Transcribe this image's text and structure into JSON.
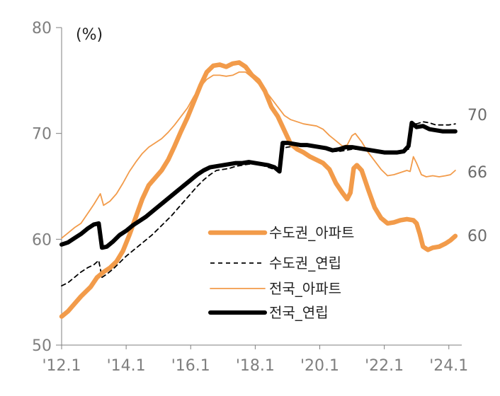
{
  "chart_data": {
    "type": "line",
    "unit_label": "(%)",
    "ylim": [
      50,
      80
    ],
    "yticks": [
      50,
      60,
      70,
      80
    ],
    "x_range": [
      2012.0,
      2024.4
    ],
    "x_tick_labels": [
      {
        "label": "'12.1",
        "x": 2012.0
      },
      {
        "label": "'14.1",
        "x": 2014.0
      },
      {
        "label": "'16.1",
        "x": 2016.0
      },
      {
        "label": "'18.1",
        "x": 2018.0
      },
      {
        "label": "'20.1",
        "x": 2020.0
      },
      {
        "label": "'22.1",
        "x": 2022.0
      },
      {
        "label": "'24.1",
        "x": 2024.0
      }
    ],
    "grid": false,
    "legend_position": "bottom-center",
    "series": [
      {
        "name": "수도권_아파트",
        "color": "#f29b4a",
        "style": "thick",
        "end_label": "60",
        "points": [
          [
            2012.0,
            52.7
          ],
          [
            2012.2,
            53.2
          ],
          [
            2012.4,
            53.9
          ],
          [
            2012.6,
            54.6
          ],
          [
            2012.9,
            55.5
          ],
          [
            2013.1,
            56.4
          ],
          [
            2013.3,
            56.9
          ],
          [
            2013.5,
            57.3
          ],
          [
            2013.7,
            57.9
          ],
          [
            2013.9,
            58.9
          ],
          [
            2014.1,
            60.4
          ],
          [
            2014.3,
            62.1
          ],
          [
            2014.5,
            63.8
          ],
          [
            2014.7,
            65.1
          ],
          [
            2014.9,
            65.8
          ],
          [
            2015.1,
            66.5
          ],
          [
            2015.3,
            67.5
          ],
          [
            2015.5,
            68.8
          ],
          [
            2015.7,
            70.2
          ],
          [
            2015.9,
            71.5
          ],
          [
            2016.1,
            73.0
          ],
          [
            2016.3,
            74.5
          ],
          [
            2016.5,
            75.8
          ],
          [
            2016.7,
            76.4
          ],
          [
            2016.9,
            76.5
          ],
          [
            2017.1,
            76.3
          ],
          [
            2017.3,
            76.6
          ],
          [
            2017.5,
            76.7
          ],
          [
            2017.7,
            76.3
          ],
          [
            2017.9,
            75.5
          ],
          [
            2018.1,
            75.0
          ],
          [
            2018.3,
            74.0
          ],
          [
            2018.5,
            72.5
          ],
          [
            2018.7,
            71.6
          ],
          [
            2018.9,
            70.3
          ],
          [
            2019.1,
            69.0
          ],
          [
            2019.3,
            68.5
          ],
          [
            2019.5,
            68.2
          ],
          [
            2019.7,
            67.8
          ],
          [
            2019.9,
            67.5
          ],
          [
            2020.1,
            67.2
          ],
          [
            2020.3,
            66.6
          ],
          [
            2020.5,
            65.3
          ],
          [
            2020.7,
            64.4
          ],
          [
            2020.85,
            63.8
          ],
          [
            2020.95,
            64.4
          ],
          [
            2021.05,
            66.7
          ],
          [
            2021.15,
            67.0
          ],
          [
            2021.3,
            66.5
          ],
          [
            2021.5,
            64.7
          ],
          [
            2021.7,
            63.0
          ],
          [
            2021.9,
            62.0
          ],
          [
            2022.1,
            61.5
          ],
          [
            2022.3,
            61.6
          ],
          [
            2022.5,
            61.8
          ],
          [
            2022.7,
            61.9
          ],
          [
            2022.9,
            61.8
          ],
          [
            2023.0,
            61.5
          ],
          [
            2023.1,
            60.5
          ],
          [
            2023.2,
            59.3
          ],
          [
            2023.35,
            59.0
          ],
          [
            2023.5,
            59.2
          ],
          [
            2023.7,
            59.3
          ],
          [
            2023.9,
            59.6
          ],
          [
            2024.05,
            59.9
          ],
          [
            2024.2,
            60.3
          ]
        ]
      },
      {
        "name": "수도권_연립",
        "color": "#000000",
        "style": "dashed",
        "end_label": "",
        "points": [
          [
            2012.0,
            55.6
          ],
          [
            2012.2,
            55.9
          ],
          [
            2012.4,
            56.4
          ],
          [
            2012.6,
            56.9
          ],
          [
            2012.8,
            57.3
          ],
          [
            2013.0,
            57.6
          ],
          [
            2013.15,
            58.0
          ],
          [
            2013.25,
            56.4
          ],
          [
            2013.4,
            56.7
          ],
          [
            2013.6,
            57.2
          ],
          [
            2013.8,
            57.8
          ],
          [
            2014.0,
            58.4
          ],
          [
            2014.2,
            58.9
          ],
          [
            2014.4,
            59.4
          ],
          [
            2014.6,
            59.9
          ],
          [
            2014.8,
            60.4
          ],
          [
            2015.0,
            61.0
          ],
          [
            2015.2,
            61.6
          ],
          [
            2015.4,
            62.2
          ],
          [
            2015.6,
            62.9
          ],
          [
            2015.8,
            63.6
          ],
          [
            2016.0,
            64.3
          ],
          [
            2016.2,
            65.0
          ],
          [
            2016.4,
            65.6
          ],
          [
            2016.6,
            66.1
          ],
          [
            2016.8,
            66.5
          ],
          [
            2017.0,
            66.6
          ],
          [
            2017.2,
            66.7
          ],
          [
            2017.4,
            66.9
          ],
          [
            2017.6,
            67.0
          ],
          [
            2017.8,
            67.1
          ],
          [
            2018.0,
            67.1
          ],
          [
            2018.2,
            67.0
          ],
          [
            2018.4,
            66.8
          ],
          [
            2018.6,
            66.6
          ],
          [
            2018.75,
            66.4
          ],
          [
            2018.85,
            68.6
          ],
          [
            2019.0,
            68.7
          ],
          [
            2019.2,
            68.8
          ],
          [
            2019.4,
            68.8
          ],
          [
            2019.6,
            68.8
          ],
          [
            2019.8,
            68.7
          ],
          [
            2020.0,
            68.6
          ],
          [
            2020.2,
            68.5
          ],
          [
            2020.4,
            68.3
          ],
          [
            2020.6,
            68.3
          ],
          [
            2020.8,
            68.4
          ],
          [
            2021.0,
            68.5
          ],
          [
            2021.2,
            68.5
          ],
          [
            2021.4,
            68.4
          ],
          [
            2021.6,
            68.3
          ],
          [
            2021.8,
            68.2
          ],
          [
            2022.0,
            68.1
          ],
          [
            2022.2,
            68.1
          ],
          [
            2022.4,
            68.1
          ],
          [
            2022.6,
            68.2
          ],
          [
            2022.75,
            68.5
          ],
          [
            2022.85,
            71.0
          ],
          [
            2023.0,
            70.9
          ],
          [
            2023.2,
            71.1
          ],
          [
            2023.4,
            71.0
          ],
          [
            2023.6,
            70.8
          ],
          [
            2023.8,
            70.8
          ],
          [
            2024.0,
            70.8
          ],
          [
            2024.2,
            70.9
          ]
        ]
      },
      {
        "name": "전국_아파트",
        "color": "#f29b4a",
        "style": "thin",
        "end_label": "66",
        "points": [
          [
            2012.0,
            60.1
          ],
          [
            2012.2,
            60.6
          ],
          [
            2012.4,
            61.1
          ],
          [
            2012.6,
            61.5
          ],
          [
            2012.8,
            62.4
          ],
          [
            2013.0,
            63.3
          ],
          [
            2013.2,
            64.3
          ],
          [
            2013.3,
            63.2
          ],
          [
            2013.5,
            63.6
          ],
          [
            2013.7,
            64.3
          ],
          [
            2013.9,
            65.3
          ],
          [
            2014.1,
            66.4
          ],
          [
            2014.3,
            67.3
          ],
          [
            2014.5,
            68.1
          ],
          [
            2014.7,
            68.7
          ],
          [
            2014.9,
            69.1
          ],
          [
            2015.1,
            69.5
          ],
          [
            2015.3,
            70.1
          ],
          [
            2015.5,
            70.8
          ],
          [
            2015.7,
            71.6
          ],
          [
            2015.9,
            72.4
          ],
          [
            2016.1,
            73.5
          ],
          [
            2016.3,
            74.4
          ],
          [
            2016.5,
            75.1
          ],
          [
            2016.7,
            75.5
          ],
          [
            2016.9,
            75.5
          ],
          [
            2017.1,
            75.4
          ],
          [
            2017.3,
            75.5
          ],
          [
            2017.5,
            75.8
          ],
          [
            2017.7,
            75.8
          ],
          [
            2017.9,
            75.3
          ],
          [
            2018.1,
            74.7
          ],
          [
            2018.3,
            74.1
          ],
          [
            2018.5,
            73.3
          ],
          [
            2018.7,
            72.5
          ],
          [
            2018.9,
            71.7
          ],
          [
            2019.1,
            71.3
          ],
          [
            2019.3,
            71.1
          ],
          [
            2019.5,
            70.9
          ],
          [
            2019.7,
            70.8
          ],
          [
            2019.9,
            70.7
          ],
          [
            2020.1,
            70.4
          ],
          [
            2020.3,
            69.8
          ],
          [
            2020.5,
            69.3
          ],
          [
            2020.7,
            68.8
          ],
          [
            2020.85,
            68.9
          ],
          [
            2021.0,
            69.8
          ],
          [
            2021.1,
            70.0
          ],
          [
            2021.3,
            69.2
          ],
          [
            2021.5,
            68.2
          ],
          [
            2021.7,
            67.4
          ],
          [
            2021.9,
            66.6
          ],
          [
            2022.1,
            66.0
          ],
          [
            2022.3,
            66.1
          ],
          [
            2022.5,
            66.3
          ],
          [
            2022.7,
            66.5
          ],
          [
            2022.8,
            66.4
          ],
          [
            2022.9,
            67.8
          ],
          [
            2023.0,
            67.2
          ],
          [
            2023.15,
            66.1
          ],
          [
            2023.3,
            65.9
          ],
          [
            2023.5,
            66.0
          ],
          [
            2023.7,
            65.9
          ],
          [
            2023.9,
            66.0
          ],
          [
            2024.05,
            66.1
          ],
          [
            2024.2,
            66.5
          ]
        ]
      },
      {
        "name": "전국_연립",
        "color": "#000000",
        "style": "thick",
        "end_label": "70",
        "points": [
          [
            2012.0,
            59.5
          ],
          [
            2012.2,
            59.7
          ],
          [
            2012.4,
            60.1
          ],
          [
            2012.6,
            60.5
          ],
          [
            2012.8,
            61.0
          ],
          [
            2013.0,
            61.4
          ],
          [
            2013.15,
            61.5
          ],
          [
            2013.25,
            59.2
          ],
          [
            2013.4,
            59.3
          ],
          [
            2013.6,
            59.8
          ],
          [
            2013.8,
            60.4
          ],
          [
            2014.0,
            60.8
          ],
          [
            2014.2,
            61.3
          ],
          [
            2014.4,
            61.7
          ],
          [
            2014.6,
            62.1
          ],
          [
            2014.8,
            62.6
          ],
          [
            2015.0,
            63.1
          ],
          [
            2015.2,
            63.6
          ],
          [
            2015.4,
            64.1
          ],
          [
            2015.6,
            64.6
          ],
          [
            2015.8,
            65.1
          ],
          [
            2016.0,
            65.6
          ],
          [
            2016.2,
            66.1
          ],
          [
            2016.4,
            66.5
          ],
          [
            2016.6,
            66.8
          ],
          [
            2016.8,
            66.9
          ],
          [
            2017.0,
            67.0
          ],
          [
            2017.2,
            67.1
          ],
          [
            2017.4,
            67.2
          ],
          [
            2017.6,
            67.2
          ],
          [
            2017.8,
            67.3
          ],
          [
            2018.0,
            67.2
          ],
          [
            2018.2,
            67.1
          ],
          [
            2018.4,
            67.0
          ],
          [
            2018.6,
            66.8
          ],
          [
            2018.75,
            66.4
          ],
          [
            2018.85,
            69.1
          ],
          [
            2019.0,
            69.1
          ],
          [
            2019.2,
            69.0
          ],
          [
            2019.4,
            68.9
          ],
          [
            2019.6,
            68.9
          ],
          [
            2019.8,
            68.8
          ],
          [
            2020.0,
            68.7
          ],
          [
            2020.2,
            68.6
          ],
          [
            2020.4,
            68.4
          ],
          [
            2020.6,
            68.5
          ],
          [
            2020.8,
            68.7
          ],
          [
            2021.0,
            68.7
          ],
          [
            2021.2,
            68.6
          ],
          [
            2021.4,
            68.5
          ],
          [
            2021.6,
            68.4
          ],
          [
            2021.8,
            68.3
          ],
          [
            2022.0,
            68.2
          ],
          [
            2022.2,
            68.2
          ],
          [
            2022.4,
            68.2
          ],
          [
            2022.6,
            68.3
          ],
          [
            2022.75,
            68.8
          ],
          [
            2022.85,
            71.0
          ],
          [
            2023.0,
            70.6
          ],
          [
            2023.2,
            70.7
          ],
          [
            2023.4,
            70.4
          ],
          [
            2023.6,
            70.3
          ],
          [
            2023.8,
            70.2
          ],
          [
            2024.0,
            70.2
          ],
          [
            2024.2,
            70.2
          ]
        ]
      }
    ],
    "legend_order": [
      0,
      1,
      2,
      3
    ]
  }
}
